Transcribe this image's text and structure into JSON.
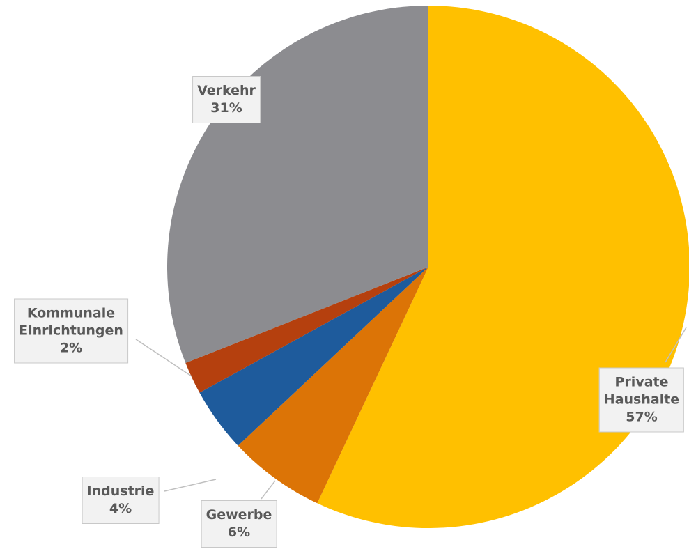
{
  "chart_data": {
    "type": "pie",
    "categories": [
      "Private Haushalte",
      "Gewerbe",
      "Industrie",
      "Kommunale Einrichtungen",
      "Verkehr"
    ],
    "values": [
      57,
      6,
      4,
      2,
      31
    ],
    "value_labels": [
      "57%",
      "6%",
      "4%",
      "2%",
      "31%"
    ],
    "colors": [
      "#FFC000",
      "#DC7406",
      "#1E5B9C",
      "#B5400E",
      "#8C8C90"
    ]
  }
}
